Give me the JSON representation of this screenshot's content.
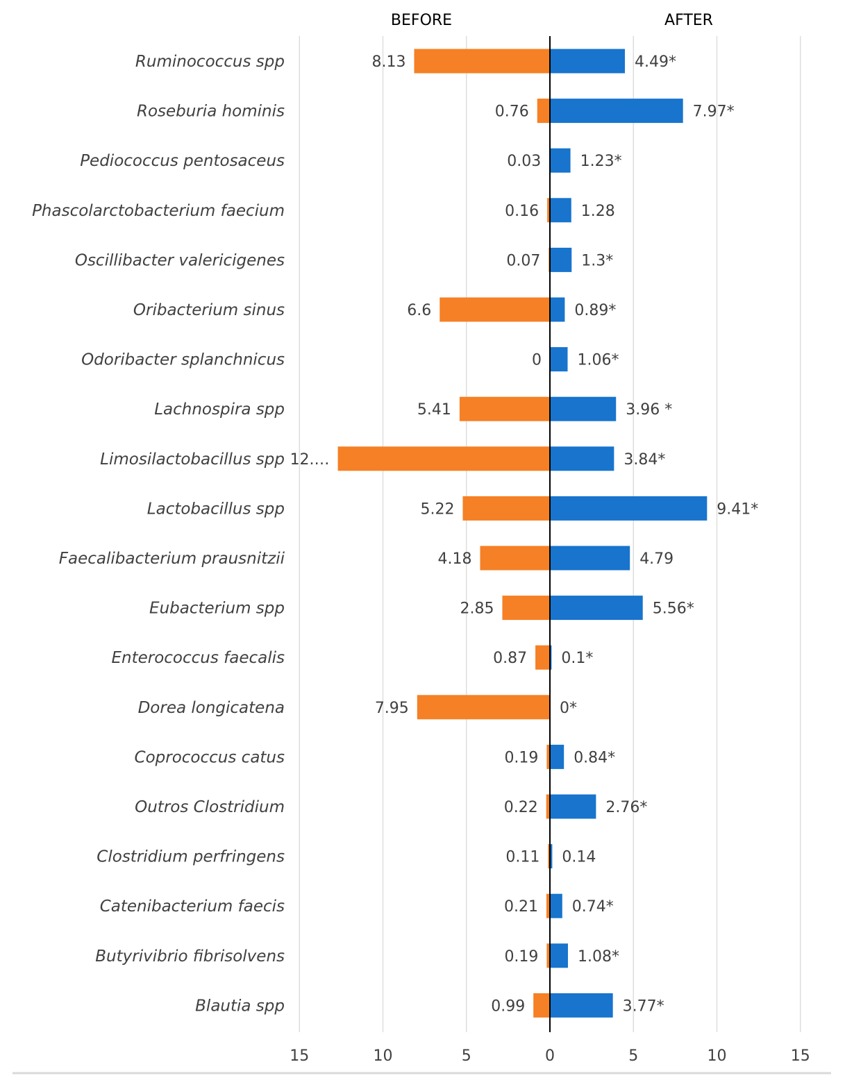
{
  "chart_data": {
    "type": "bar",
    "orientation": "horizontal-diverging",
    "title": "",
    "left_header": "BEFORE",
    "right_header": "AFTER",
    "xlim": [
      -15,
      15
    ],
    "x_ticks": [
      15,
      10,
      5,
      0,
      5,
      10,
      15
    ],
    "colors": {
      "before": "#F58025",
      "after": "#1874CD",
      "grid": "#D9D9D9",
      "axis": "#000000"
    },
    "categories": [
      "Ruminococcus spp",
      "Roseburia hominis",
      "Pediococcus pentosaceus",
      "Phascolarctobacterium faecium",
      "Oscillibacter valericigenes",
      "Oribacterium sinus",
      "Odoribacter splanchnicus",
      "Lachnospira spp",
      "Limosilactobacillus spp",
      "Lactobacillus spp",
      "Faecalibacterium  prausnitzii",
      "Eubacterium spp",
      "Enterococcus faecalis",
      "Dorea longicatena",
      "Coprococcus catus",
      "Outros Clostridium",
      "Clostridium perfringens",
      "Catenibacterium faecis",
      "Butyrivibrio fibrisolvens",
      "Blautia spp"
    ],
    "series": [
      {
        "name": "BEFORE",
        "values": [
          8.13,
          0.76,
          0.03,
          0.16,
          0.07,
          6.6,
          0,
          5.41,
          12.7,
          5.22,
          4.18,
          2.85,
          0.87,
          7.95,
          0.19,
          0.22,
          0.11,
          0.21,
          0.19,
          0.99
        ],
        "labels": [
          "8.13",
          "0.76",
          "0.03",
          "0.16",
          "0.07",
          "6.6",
          "0",
          "5.41",
          "12.…",
          "5.22",
          "4.18",
          "2.85",
          "0.87",
          "7.95",
          "0.19",
          "0.22",
          "0.11",
          "0.21",
          "0.19",
          "0.99"
        ]
      },
      {
        "name": "AFTER",
        "values": [
          4.49,
          7.97,
          1.23,
          1.28,
          1.3,
          0.89,
          1.06,
          3.96,
          3.84,
          9.41,
          4.79,
          5.56,
          0.1,
          0,
          0.84,
          2.76,
          0.14,
          0.74,
          1.08,
          3.77
        ],
        "labels": [
          "4.49*",
          "7.97*",
          "1.23*",
          "1.28",
          "1.3*",
          "0.89*",
          "1.06*",
          "3.96 *",
          "3.84*",
          "9.41*",
          "4.79",
          "5.56*",
          "0.1*",
          "0*",
          "0.84*",
          "2.76*",
          "0.14",
          "0.74*",
          "1.08*",
          "3.77*"
        ]
      }
    ]
  }
}
